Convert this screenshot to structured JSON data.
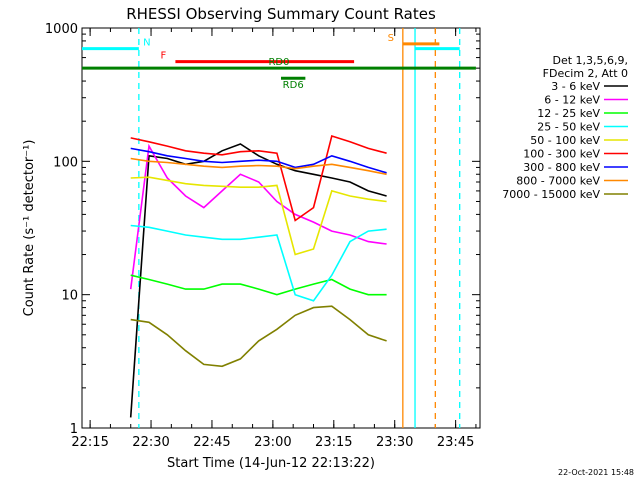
{
  "chart_data": {
    "type": "line",
    "title": "RHESSI Observing Summary Count Rates",
    "xlabel": "Start Time (14-Jun-12 22:13:22)",
    "ylabel": "Count Rate (s⁻¹ detector⁻¹)",
    "y_scale": "log",
    "ylim": [
      1,
      1000
    ],
    "xlim": [
      "22:13",
      "23:51"
    ],
    "x_ticks": [
      "22:15",
      "22:30",
      "22:45",
      "23:00",
      "23:15",
      "23:30",
      "23:45"
    ],
    "y_ticks": [
      "1",
      "10",
      "100",
      "1000"
    ],
    "legend_header": [
      "Det 1,3,5,6,9,",
      "FDecim 2, Att 0"
    ],
    "legend_position": "right",
    "series": [
      {
        "name": "3 - 6 keV",
        "color": "#000000",
        "values": [
          1.2,
          110,
          105,
          95,
          100,
          120,
          135,
          110,
          95,
          85,
          80,
          75,
          70,
          60,
          55
        ]
      },
      {
        "name": "6 - 12 keV",
        "color": "#ff00ff",
        "values": [
          11,
          130,
          75,
          55,
          45,
          60,
          80,
          70,
          50,
          40,
          35,
          30,
          28,
          25,
          24
        ]
      },
      {
        "name": "12 - 25 keV",
        "color": "#00ff00",
        "values": [
          14,
          13,
          12,
          11,
          11,
          12,
          12,
          11,
          10,
          11,
          12,
          13,
          11,
          10,
          10
        ]
      },
      {
        "name": "25 - 50 keV",
        "color": "#00ffff",
        "values": [
          33,
          32,
          30,
          28,
          27,
          26,
          26,
          27,
          28,
          10,
          9,
          14,
          25,
          30,
          31
        ]
      },
      {
        "name": "50 - 100 keV",
        "color": "#e6e600",
        "values": [
          75,
          76,
          72,
          68,
          66,
          65,
          64,
          64,
          66,
          20,
          22,
          60,
          55,
          52,
          50
        ]
      },
      {
        "name": "100 - 300 keV",
        "color": "#ff0000",
        "values": [
          150,
          140,
          130,
          120,
          115,
          112,
          118,
          120,
          115,
          36,
          45,
          155,
          140,
          125,
          115
        ]
      },
      {
        "name": "300 - 800 keV",
        "color": "#0000ff",
        "values": [
          125,
          118,
          110,
          105,
          100,
          98,
          100,
          102,
          100,
          90,
          95,
          110,
          100,
          90,
          82
        ]
      },
      {
        "name": "800 - 7000 keV",
        "color": "#ff8800",
        "values": [
          105,
          100,
          98,
          95,
          92,
          90,
          92,
          93,
          92,
          88,
          92,
          95,
          90,
          85,
          80
        ]
      },
      {
        "name": "7000 - 15000 keV",
        "color": "#808000",
        "values": [
          6.5,
          6.2,
          5.0,
          3.8,
          3.0,
          2.9,
          3.3,
          4.5,
          5.5,
          7.0,
          8.0,
          8.2,
          6.5,
          5.0,
          4.5
        ]
      }
    ],
    "flags": [
      {
        "label": "N",
        "color": "#00ffff",
        "segments": [
          [
            "22:13",
            "22:27"
          ],
          [
            "23:35",
            "23:46"
          ]
        ],
        "level": 700
      },
      {
        "label": "F",
        "color": "#ff0000",
        "segments": [
          [
            "22:36",
            "23:20"
          ]
        ],
        "level": 560
      },
      {
        "label": "S",
        "color": "#ff8800",
        "segments": [
          [
            "23:32",
            "23:41"
          ]
        ],
        "level": 760
      },
      {
        "label": "RD0",
        "color": "#008000",
        "segments": [
          [
            "22:13",
            "23:50"
          ]
        ],
        "level": 500
      },
      {
        "label": "RD6",
        "color": "#008000",
        "segments": [
          [
            "23:02",
            "23:08"
          ]
        ],
        "level": 420
      }
    ],
    "vertical_markers": [
      {
        "time": "22:27",
        "color": "#00ffff",
        "style": "dashed"
      },
      {
        "time": "23:35",
        "color": "#00ffff",
        "style": "solid"
      },
      {
        "time": "23:46",
        "color": "#00ffff",
        "style": "dashed"
      },
      {
        "time": "23:32",
        "color": "#ff8800",
        "style": "solid"
      },
      {
        "time": "23:40",
        "color": "#ff8800",
        "style": "dashed"
      }
    ],
    "grid": false
  },
  "timestamp": "22-Oct-2021 15:48"
}
